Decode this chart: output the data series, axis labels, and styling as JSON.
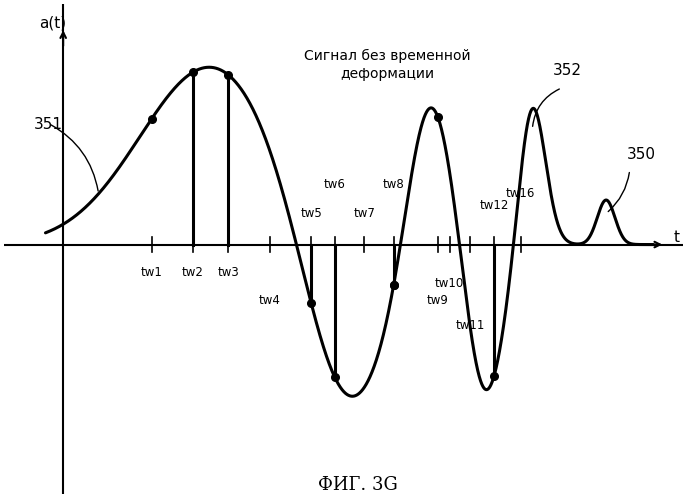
{
  "title": "ФИГ. 3G",
  "ylabel": "a(t)",
  "xlabel": "t",
  "annotation_text": "Сигнал без временной\nдеформации",
  "label_351": "351",
  "label_352": "352",
  "label_350": "350",
  "bg_color": "#ffffff",
  "line_color": "#000000"
}
